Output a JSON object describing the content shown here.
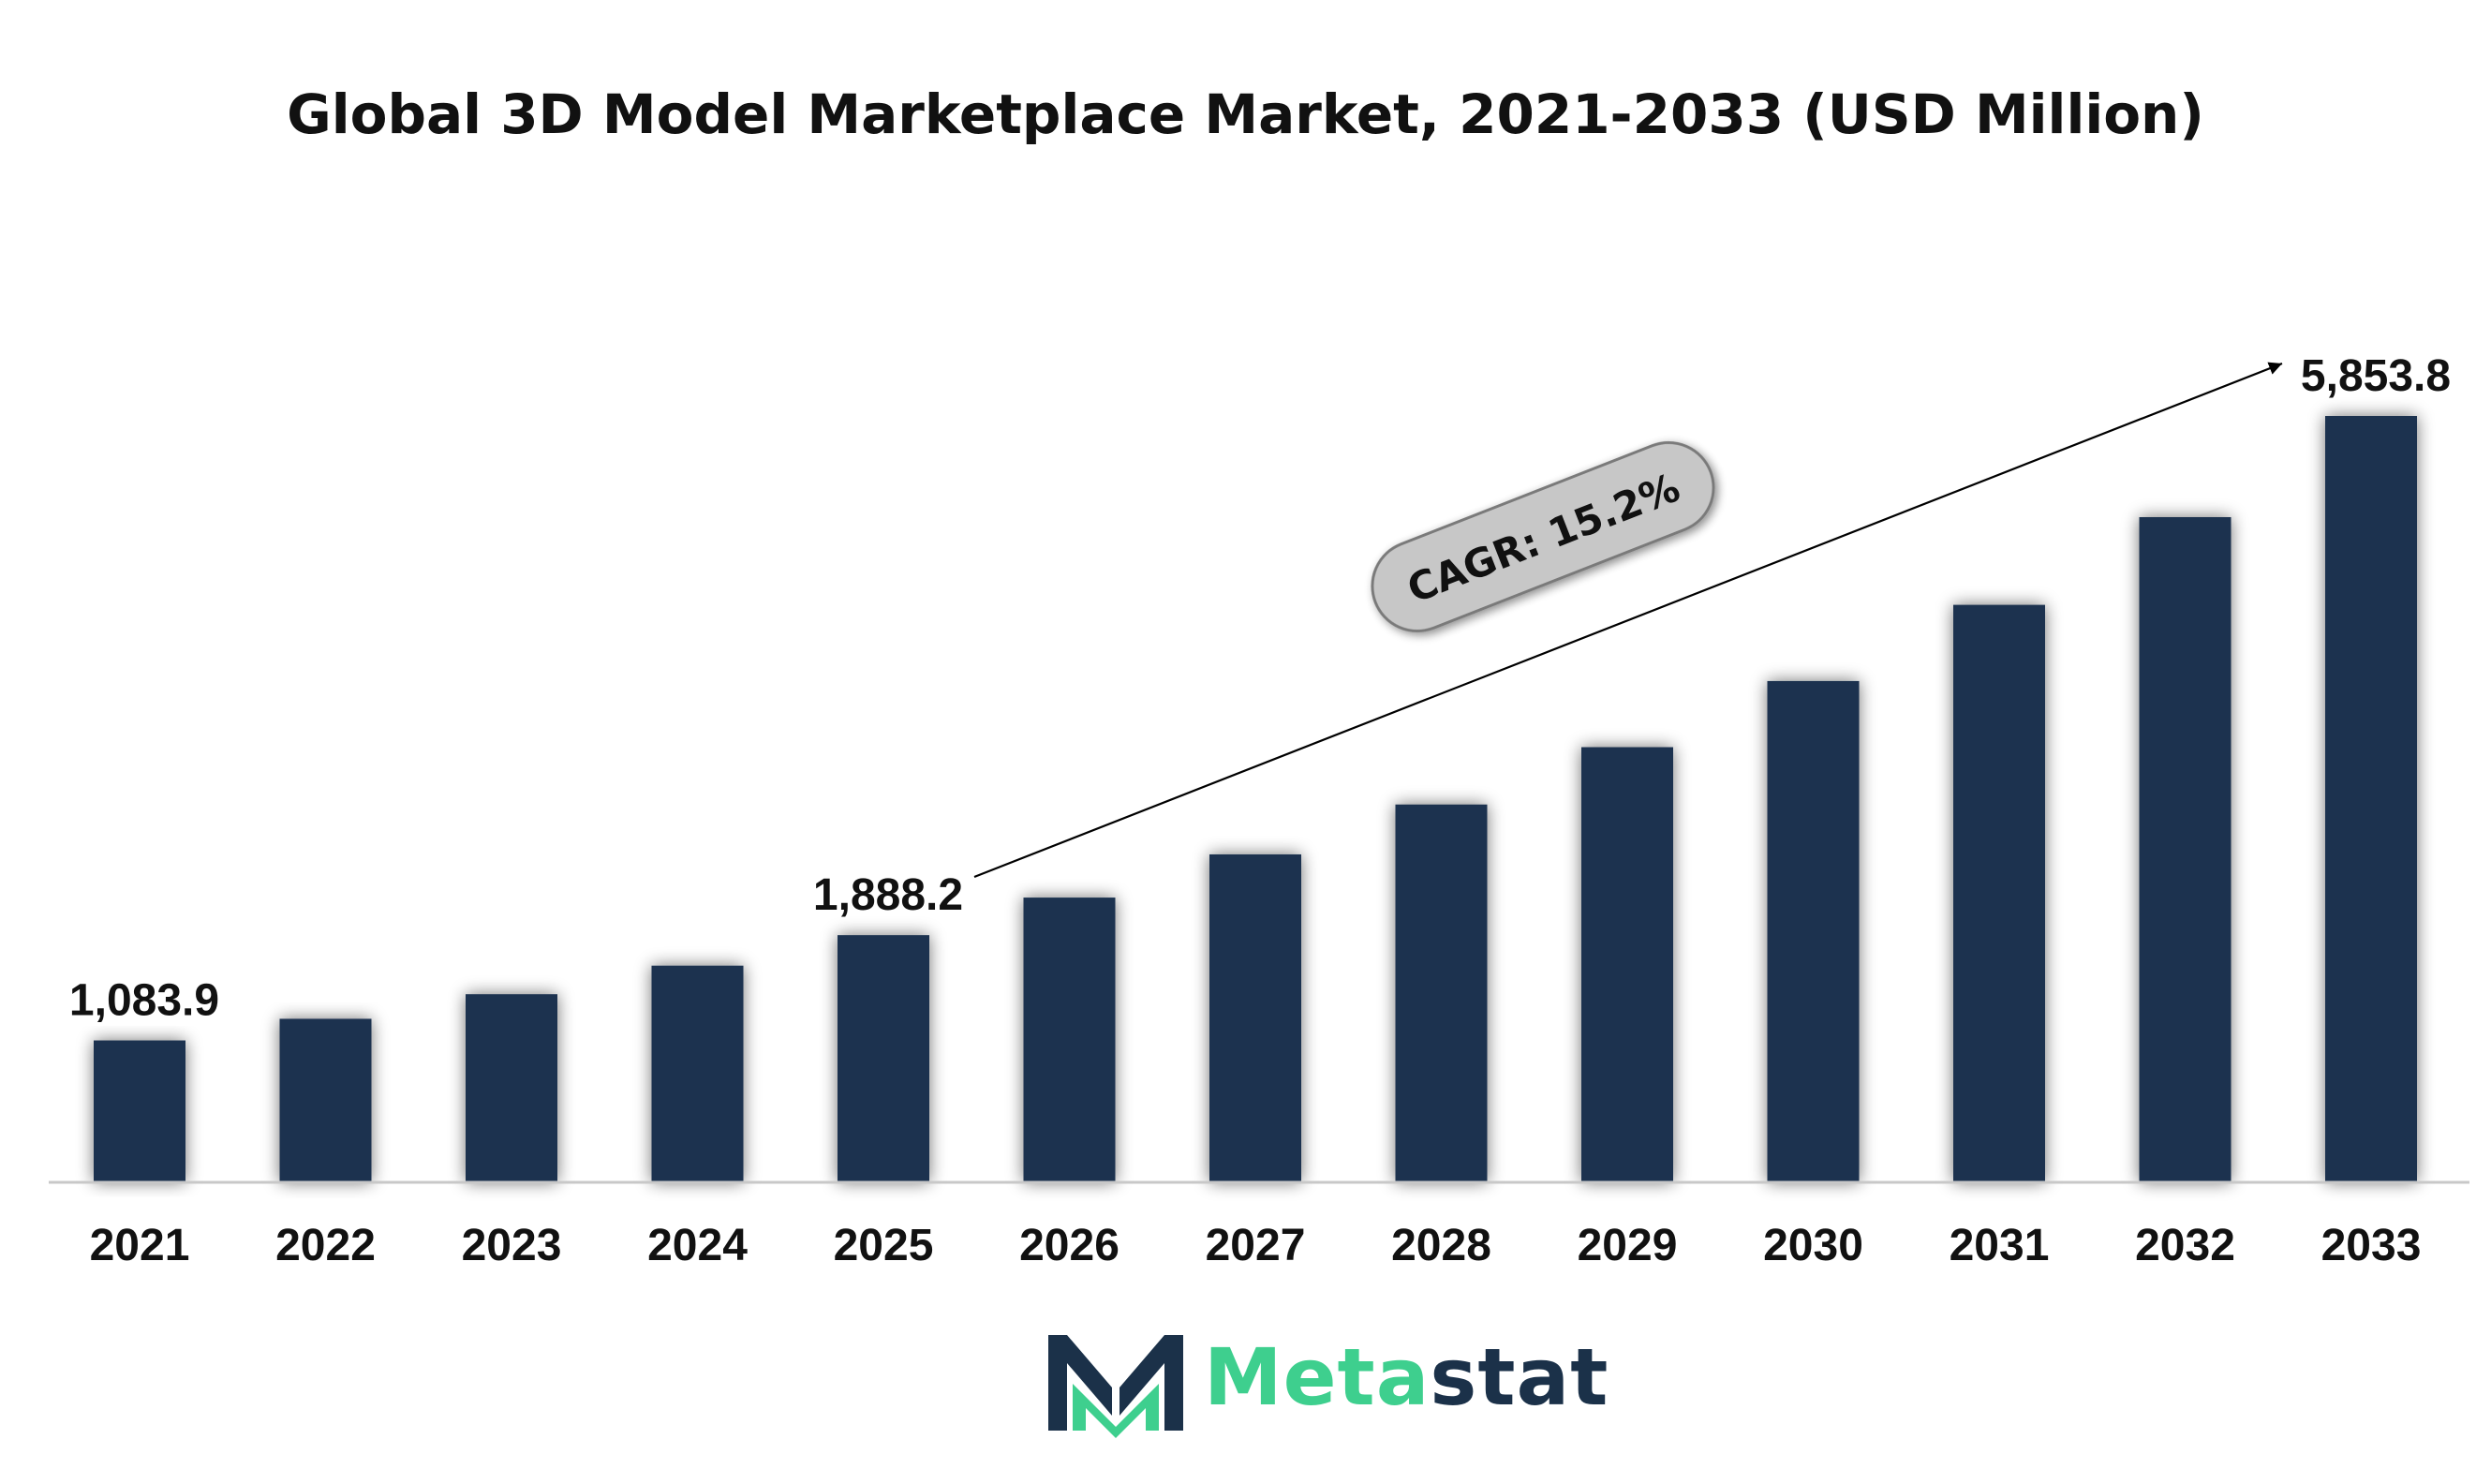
{
  "title": "Global 3D Model Marketplace Market, 2021-2033 (USD Million)",
  "chart_data": {
    "type": "bar",
    "categories": [
      "2021",
      "2022",
      "2023",
      "2024",
      "2025",
      "2026",
      "2027",
      "2028",
      "2029",
      "2030",
      "2031",
      "2032",
      "2033"
    ],
    "values": [
      1083.9,
      1249,
      1437,
      1655,
      1888.2,
      2175,
      2505,
      2886,
      3324,
      3829,
      4411,
      5081,
      5853.8
    ],
    "labeled_values": {
      "2021": "1,083.9",
      "2025": "1,888.2",
      "2033": "5,853.8"
    },
    "ylim": [
      0,
      5853.8
    ],
    "grid": false,
    "bar_color": "#1b3350",
    "annotation": "CAGR: 15.2%"
  },
  "brand": {
    "name_part1": "Meta",
    "name_part2": "stat",
    "accent": "#3ecf8e",
    "dark": "#1b3149"
  }
}
